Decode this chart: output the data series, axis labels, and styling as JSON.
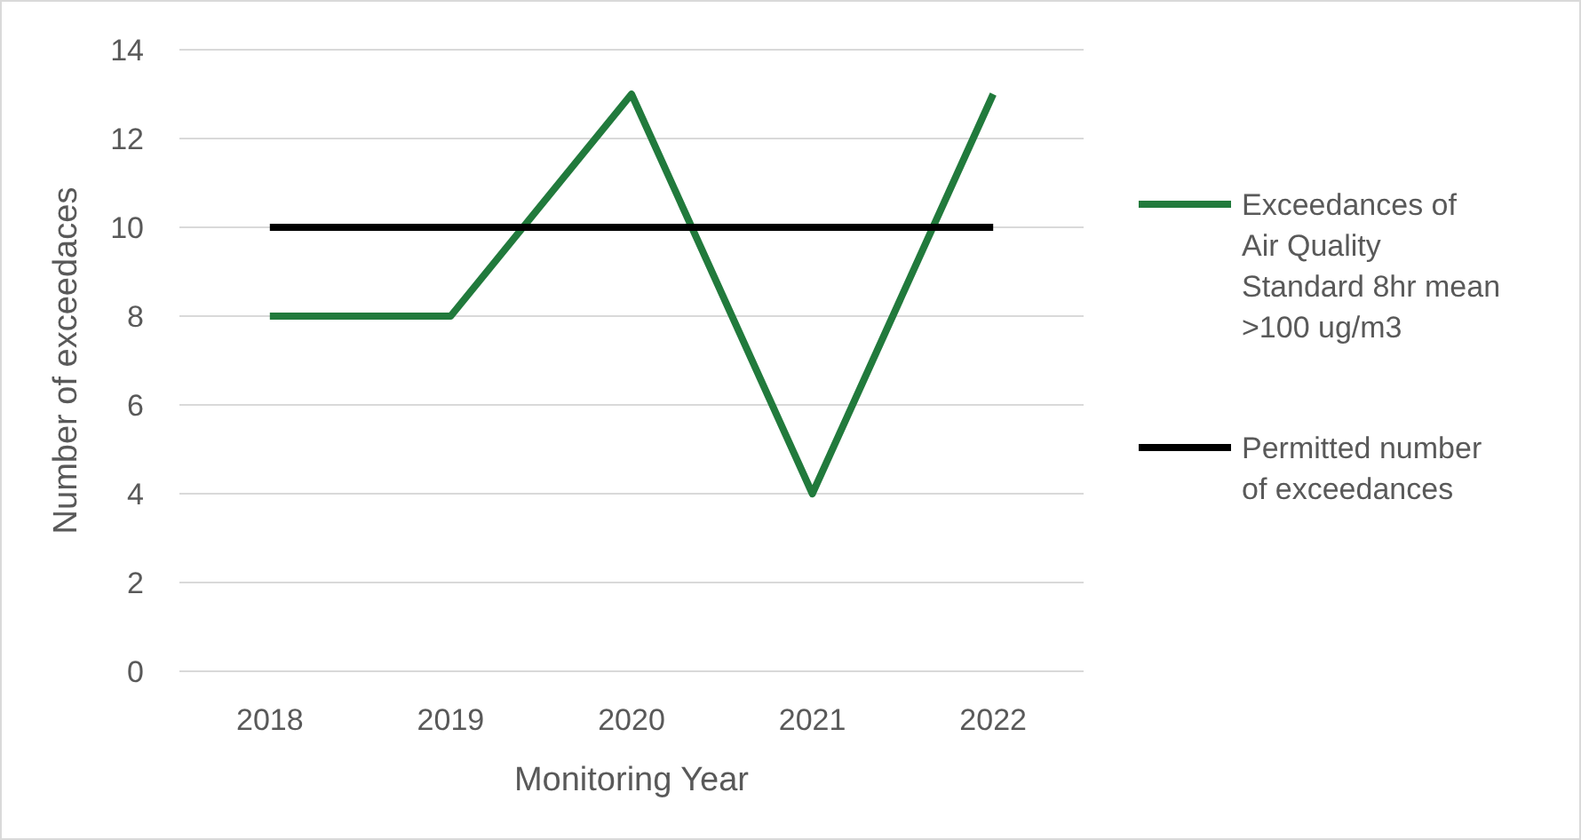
{
  "chart_data": {
    "type": "line",
    "xlabel": "Monitoring Year",
    "ylabel": "Number of exceedaces",
    "categories": [
      "2018",
      "2019",
      "2020",
      "2021",
      "2022"
    ],
    "series": [
      {
        "name": "Exceedances of Air Quality Standard 8hr mean >100 ug/m3",
        "color": "#217a3c",
        "values": [
          8,
          8,
          13,
          4,
          13
        ]
      },
      {
        "name": "Permitted number of exceedances",
        "color": "#000000",
        "values": [
          10,
          10,
          10,
          10,
          10
        ]
      }
    ],
    "ylim": [
      0,
      14
    ],
    "yticks": [
      0,
      2,
      4,
      6,
      8,
      10,
      12,
      14
    ],
    "grid": "y",
    "legend": "right",
    "marker": "none",
    "line_style": "solid"
  }
}
